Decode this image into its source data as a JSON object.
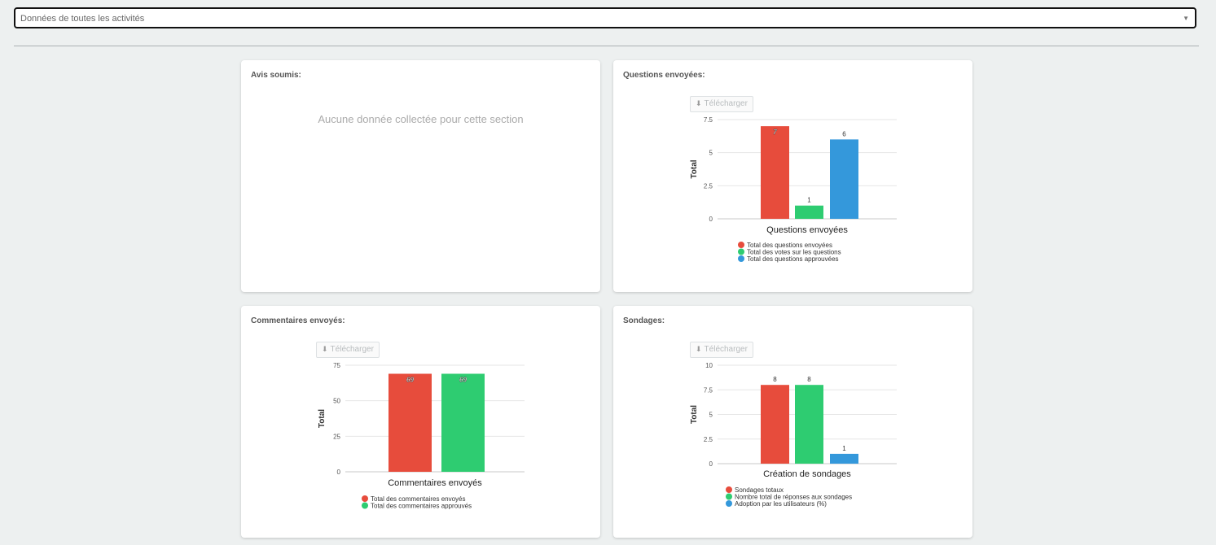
{
  "filter": {
    "selected": "Données de toutes les activités"
  },
  "download_label": "Télécharger",
  "cards": {
    "avis": {
      "title": "Avis soumis:",
      "empty_message": "Aucune donnée collectée pour cette section"
    },
    "questions": {
      "title": "Questions envoyées:"
    },
    "commentaires": {
      "title": "Commentaires envoyés:"
    },
    "sondages": {
      "title": "Sondages:"
    }
  },
  "colors": {
    "red": "#e74c3c",
    "green": "#2ecc71",
    "blue": "#3498db",
    "grid": "#e6e6e6"
  },
  "chart_data": [
    {
      "id": "questions",
      "type": "bar",
      "ylabel": "Total",
      "xlabel": "Questions envoyées",
      "ylim": [
        0,
        7.5
      ],
      "yticks": [
        "0",
        "2.5",
        "5",
        "7.5"
      ],
      "series": [
        {
          "name": "Total des questions envoyées",
          "value": 7,
          "color": "#e74c3c",
          "label": "7",
          "label_inside": true
        },
        {
          "name": "Total des votes sur les questions",
          "value": 1,
          "color": "#2ecc71",
          "label": "1",
          "label_inside": false
        },
        {
          "name": "Total des questions approuvées",
          "value": 6,
          "color": "#3498db",
          "label": "6",
          "label_inside": false
        }
      ],
      "legend_position": "bottom"
    },
    {
      "id": "commentaires",
      "type": "bar",
      "ylabel": "Total",
      "xlabel": "Commentaires envoyés",
      "ylim": [
        0,
        75
      ],
      "yticks": [
        "0",
        "25",
        "50",
        "75"
      ],
      "series": [
        {
          "name": "Total des commentaires envoyés",
          "value": 69,
          "color": "#e74c3c",
          "label": "69",
          "label_inside": true
        },
        {
          "name": "Total des commentaires approuvés",
          "value": 69,
          "color": "#2ecc71",
          "label": "69",
          "label_inside": true
        }
      ],
      "legend_position": "bottom"
    },
    {
      "id": "sondages",
      "type": "bar",
      "ylabel": "Total",
      "xlabel": "Création de sondages",
      "ylim": [
        0,
        10
      ],
      "yticks": [
        "0",
        "2.5",
        "5",
        "7.5",
        "10"
      ],
      "series": [
        {
          "name": "Sondages totaux",
          "value": 8,
          "color": "#e74c3c",
          "label": "8",
          "label_inside": false
        },
        {
          "name": "Nombre total de réponses aux sondages",
          "value": 8,
          "color": "#2ecc71",
          "label": "8",
          "label_inside": false
        },
        {
          "name": "Adoption par les utilisateurs (%)",
          "value": 1,
          "color": "#3498db",
          "label": "1",
          "label_inside": false
        }
      ],
      "legend_position": "bottom"
    }
  ]
}
